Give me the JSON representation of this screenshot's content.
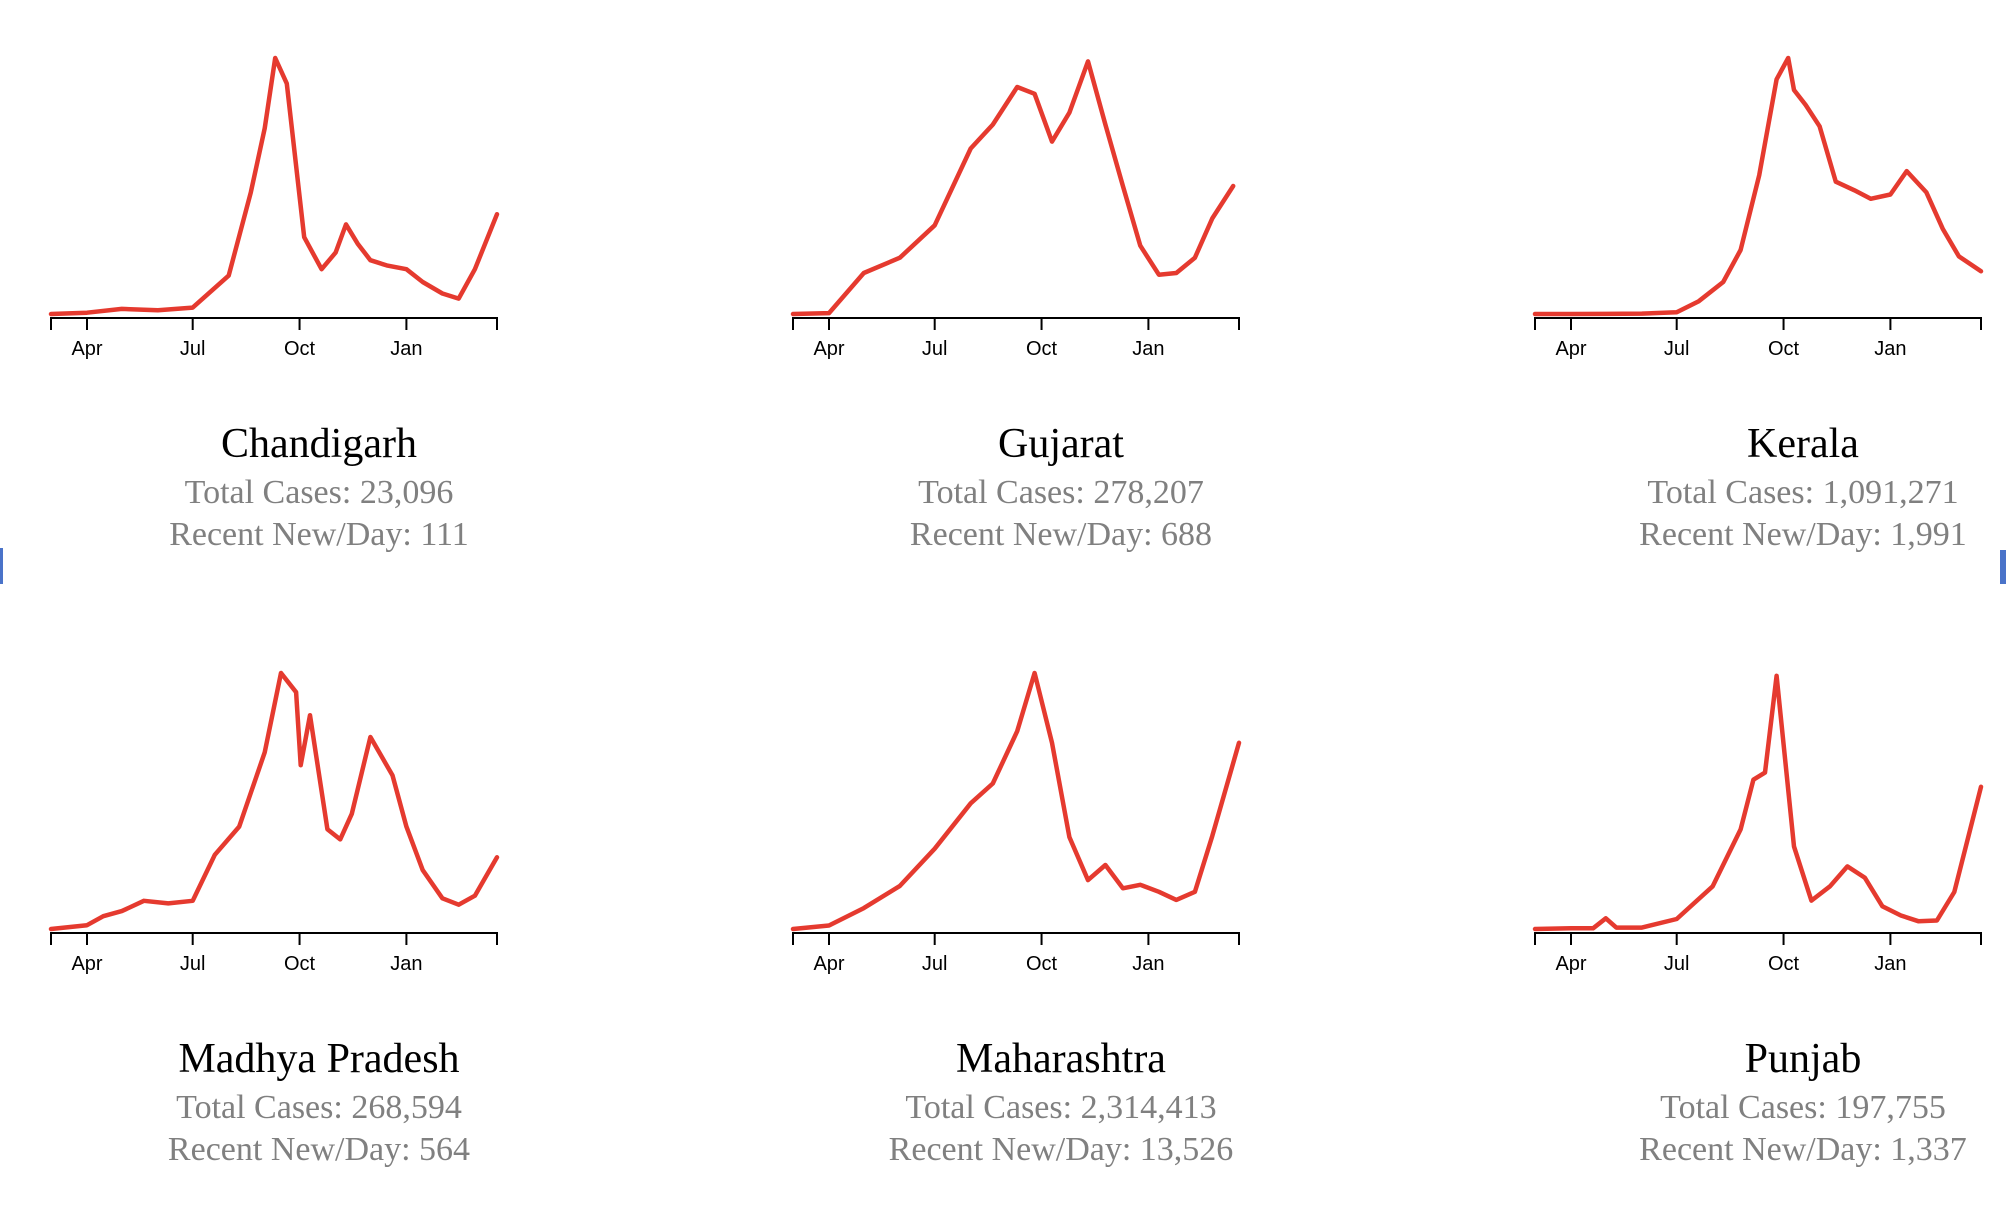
{
  "chart_data": [
    {
      "type": "line",
      "title": "Chandigarh",
      "total_label": "Total Cases: 23,096",
      "recent_label": "Recent New/Day: 111",
      "x_ticks": [
        "Apr",
        "Jul",
        "Oct",
        "Jan"
      ],
      "x": [
        "2020-03-01",
        "2020-04-01",
        "2020-05-01",
        "2020-06-01",
        "2020-07-01",
        "2020-08-01",
        "2020-08-20",
        "2020-09-01",
        "2020-09-10",
        "2020-09-20",
        "2020-10-05",
        "2020-10-20",
        "2020-11-01",
        "2020-11-10",
        "2020-11-20",
        "2020-12-01",
        "2020-12-15",
        "2021-01-01",
        "2021-01-15",
        "2021-02-01",
        "2021-02-15",
        "2021-03-01",
        "2021-03-20"
      ],
      "values": [
        0,
        1,
        4,
        3,
        5,
        30,
        95,
        145,
        200,
        180,
        60,
        35,
        48,
        70,
        55,
        42,
        38,
        35,
        25,
        16,
        12,
        35,
        78
      ],
      "ylim": [
        0,
        200
      ],
      "color": "#e53a2f"
    },
    {
      "type": "line",
      "title": "Gujarat",
      "total_label": "Total Cases: 278,207",
      "recent_label": "Recent New/Day: 688",
      "x_ticks": [
        "Apr",
        "Jul",
        "Oct",
        "Jan"
      ],
      "x": [
        "2020-03-01",
        "2020-04-01",
        "2020-05-01",
        "2020-06-01",
        "2020-07-01",
        "2020-08-01",
        "2020-08-20",
        "2020-09-10",
        "2020-09-25",
        "2020-10-10",
        "2020-10-25",
        "2020-11-10",
        "2020-11-25",
        "2020-12-10",
        "2020-12-25",
        "2021-01-10",
        "2021-01-25",
        "2021-02-10",
        "2021-02-25",
        "2021-03-15"
      ],
      "values": [
        0,
        5,
        240,
        330,
        520,
        970,
        1110,
        1330,
        1290,
        1010,
        1180,
        1480,
        1110,
        750,
        400,
        230,
        240,
        330,
        560,
        750
      ],
      "ylim": [
        0,
        1500
      ],
      "color": "#e53a2f"
    },
    {
      "type": "line",
      "title": "Kerala",
      "total_label": "Total Cases: 1,091,271",
      "recent_label": "Recent New/Day: 1,991",
      "x_ticks": [
        "Apr",
        "Jul",
        "Oct",
        "Jan"
      ],
      "x": [
        "2020-03-01",
        "2020-04-01",
        "2020-05-01",
        "2020-06-01",
        "2020-07-01",
        "2020-07-20",
        "2020-08-10",
        "2020-08-25",
        "2020-09-10",
        "2020-09-25",
        "2020-10-05",
        "2020-10-10",
        "2020-10-20",
        "2020-11-01",
        "2020-11-15",
        "2020-12-01",
        "2020-12-15",
        "2021-01-01",
        "2021-01-15",
        "2021-02-01",
        "2021-02-15",
        "2021-03-01",
        "2021-03-20"
      ],
      "values": [
        0,
        2,
        5,
        20,
        80,
        600,
        1500,
        3000,
        6500,
        11000,
        12000,
        10500,
        9800,
        8800,
        6200,
        5800,
        5400,
        5600,
        6700,
        5700,
        4000,
        2700,
        2000
      ],
      "ylim": [
        0,
        12000
      ],
      "color": "#e53a2f"
    },
    {
      "type": "line",
      "title": "Madhya Pradesh",
      "total_label": "Total Cases: 268,594",
      "recent_label": "Recent New/Day: 564",
      "x_ticks": [
        "Apr",
        "Jul",
        "Oct",
        "Jan"
      ],
      "x": [
        "2020-03-01",
        "2020-04-01",
        "2020-04-15",
        "2020-05-01",
        "2020-05-20",
        "2020-06-10",
        "2020-07-01",
        "2020-07-20",
        "2020-08-10",
        "2020-09-01",
        "2020-09-15",
        "2020-09-28",
        "2020-10-02",
        "2020-10-10",
        "2020-10-25",
        "2020-11-05",
        "2020-11-15",
        "2020-12-01",
        "2020-12-20",
        "2021-01-01",
        "2021-01-15",
        "2021-02-01",
        "2021-02-15",
        "2021-03-01",
        "2021-03-20"
      ],
      "values": [
        0,
        30,
        100,
        140,
        220,
        200,
        220,
        580,
        800,
        1380,
        2000,
        1850,
        1280,
        1670,
        780,
        700,
        900,
        1500,
        1200,
        800,
        460,
        240,
        190,
        260,
        560
      ],
      "ylim": [
        0,
        2000
      ],
      "color": "#e53a2f"
    },
    {
      "type": "line",
      "title": "Maharashtra",
      "total_label": "Total Cases: 2,314,413",
      "recent_label": "Recent New/Day: 13,526",
      "x_ticks": [
        "Apr",
        "Jul",
        "Oct",
        "Jan"
      ],
      "x": [
        "2020-03-01",
        "2020-04-01",
        "2020-05-01",
        "2020-06-01",
        "2020-07-01",
        "2020-08-01",
        "2020-08-20",
        "2020-09-10",
        "2020-09-25",
        "2020-10-10",
        "2020-10-25",
        "2020-11-10",
        "2020-11-25",
        "2020-12-10",
        "2020-12-25",
        "2021-01-10",
        "2021-01-25",
        "2021-02-10",
        "2021-02-25",
        "2021-03-20"
      ],
      "values": [
        0,
        300,
        1800,
        3700,
        6900,
        10800,
        12500,
        17000,
        22000,
        16000,
        7900,
        4200,
        5500,
        3500,
        3800,
        3200,
        2500,
        3200,
        8000,
        16000
      ],
      "ylim": [
        0,
        22000
      ],
      "color": "#e53a2f"
    },
    {
      "type": "line",
      "title": "Punjab",
      "total_label": "Total Cases: 197,755",
      "recent_label": "Recent New/Day: 1,337",
      "x_ticks": [
        "Apr",
        "Jul",
        "Oct",
        "Jan"
      ],
      "x": [
        "2020-03-01",
        "2020-04-01",
        "2020-04-20",
        "2020-05-01",
        "2020-05-10",
        "2020-06-01",
        "2020-07-01",
        "2020-08-01",
        "2020-08-25",
        "2020-09-05",
        "2020-09-15",
        "2020-09-25",
        "2020-10-10",
        "2020-10-25",
        "2020-11-10",
        "2020-11-25",
        "2020-12-10",
        "2020-12-25",
        "2021-01-10",
        "2021-01-25",
        "2021-02-10",
        "2021-02-25",
        "2021-03-20"
      ],
      "values": [
        0,
        5,
        5,
        75,
        10,
        10,
        70,
        300,
        700,
        1050,
        1100,
        1780,
        580,
        200,
        300,
        440,
        360,
        160,
        95,
        55,
        60,
        260,
        1000
      ],
      "ylim": [
        0,
        1800
      ],
      "color": "#e53a2f"
    }
  ]
}
